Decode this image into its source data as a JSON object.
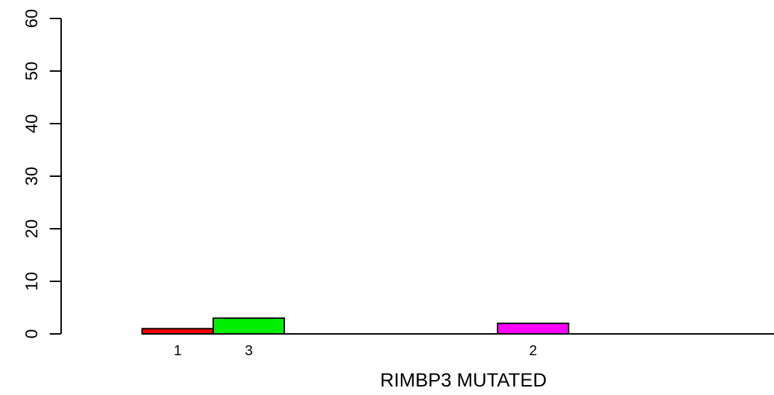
{
  "chart_data": {
    "type": "bar",
    "xlabel": "RIMBP3 MUTATED",
    "ylabel": "",
    "ylim": [
      0,
      60
    ],
    "yticks": [
      0,
      10,
      20,
      30,
      40,
      50,
      60
    ],
    "grid": false,
    "bars": [
      {
        "label": "1",
        "value": 1,
        "color": "#ff0000",
        "slot": 1
      },
      {
        "label": "3",
        "value": 3,
        "color": "#00ee00",
        "slot": 2
      },
      {
        "label": "2",
        "value": 2,
        "color": "#ff00ff",
        "slot": 6
      }
    ]
  }
}
